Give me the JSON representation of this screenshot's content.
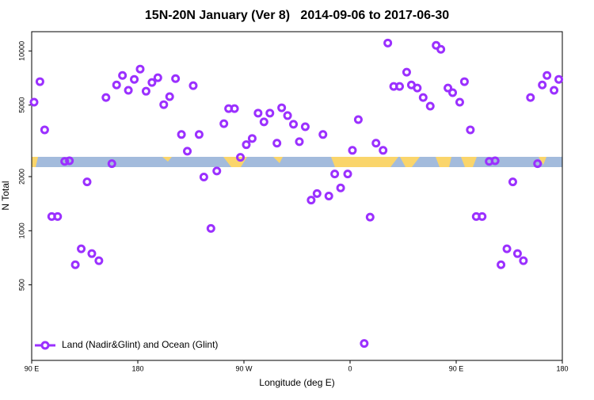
{
  "chart_data": {
    "type": "scatter",
    "title": "15N-20N January (Ver 8)   2014-09-06 to 2017-06-30",
    "x_label": "Longitude (deg E)",
    "y_label": "N Total",
    "log_y": true,
    "grid": false,
    "legend_position": "lower-left",
    "xlim": [
      90,
      540
    ],
    "xticks": [
      {
        "value": 90,
        "label": "90 E"
      },
      {
        "value": 180,
        "label": "180"
      },
      {
        "value": 270,
        "label": "90 W"
      },
      {
        "value": 360,
        "label": "0"
      },
      {
        "value": 450,
        "label": "90 E"
      },
      {
        "value": 540,
        "label": "180"
      }
    ],
    "ylim": [
      190,
      12800
    ],
    "yticks": [
      500,
      1000,
      2000,
      5000,
      10000
    ],
    "x": [
      92,
      97,
      101,
      107,
      112,
      118,
      122,
      127,
      132,
      137,
      141,
      147,
      153,
      158,
      162,
      167,
      172,
      177,
      182,
      187,
      192,
      197,
      202,
      207,
      212,
      217,
      222,
      227,
      232,
      236,
      242,
      247,
      253,
      257,
      262,
      267,
      272,
      277,
      282,
      287,
      292,
      298,
      302,
      307,
      312,
      317,
      322,
      327,
      332,
      337,
      342,
      347,
      352,
      358,
      362,
      367,
      372,
      377,
      382,
      388,
      392,
      397,
      402,
      408,
      412,
      417,
      422,
      428,
      433,
      437,
      443,
      447,
      453,
      457,
      462,
      467,
      472,
      478,
      483,
      488,
      493,
      498,
      502,
      507,
      513,
      519,
      523,
      527,
      533,
      537
    ],
    "series": [
      {
        "name": "Land (Nadir&Glint) and Ocean (Glint)",
        "color": "#9b30ff",
        "values": [
          5190,
          6750,
          3640,
          1200,
          1200,
          2430,
          2450,
          647,
          793,
          1870,
          746,
          681,
          5510,
          2360,
          6470,
          7310,
          6040,
          6950,
          7930,
          5970,
          6680,
          7100,
          5030,
          5570,
          7020,
          3430,
          2770,
          6410,
          3430,
          1990,
          1030,
          2150,
          3940,
          4780,
          4780,
          2560,
          3010,
          3260,
          4510,
          4030,
          4510,
          3070,
          4830,
          4370,
          3910,
          3130,
          3790,
          1480,
          1610,
          3430,
          1560,
          2070,
          1730,
          2070,
          2800,
          4150,
          236,
          1190,
          3070,
          2800,
          11070,
          6350,
          6350,
          7620,
          6470,
          6220,
          5510,
          4930,
          10740,
          10210,
          6220,
          5860,
          5190,
          6750,
          3640,
          1200,
          1200,
          2430,
          2450,
          647,
          793,
          1870,
          746,
          681,
          5510,
          2360,
          6470,
          7310,
          6040,
          6950
        ]
      }
    ]
  }
}
